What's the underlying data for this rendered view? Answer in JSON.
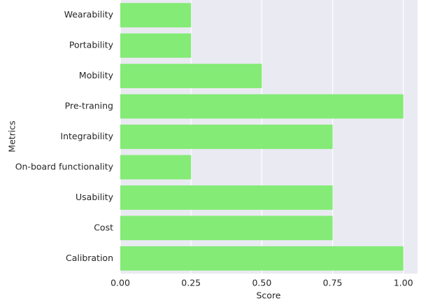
{
  "chart_data": {
    "type": "barh",
    "xlabel": "Score",
    "ylabel": "Metrics",
    "categories": [
      "Wearability",
      "Portability",
      "Mobility",
      "Pre-traning",
      "Integrability",
      "On-board functionality",
      "Usability",
      "Cost",
      "Calibration"
    ],
    "values": [
      0.25,
      0.25,
      0.5,
      1.0,
      0.75,
      0.25,
      0.75,
      0.75,
      1.0
    ],
    "color": "#84eb76",
    "xlim": [
      0,
      1.05
    ],
    "xticks": [
      {
        "value": 0,
        "label": "0.00"
      },
      {
        "value": 0.25,
        "label": "0.25"
      },
      {
        "value": 0.5,
        "label": "0.50"
      },
      {
        "value": 0.75,
        "label": "0.75"
      },
      {
        "value": 1,
        "label": "1.00"
      }
    ],
    "grid": true
  }
}
